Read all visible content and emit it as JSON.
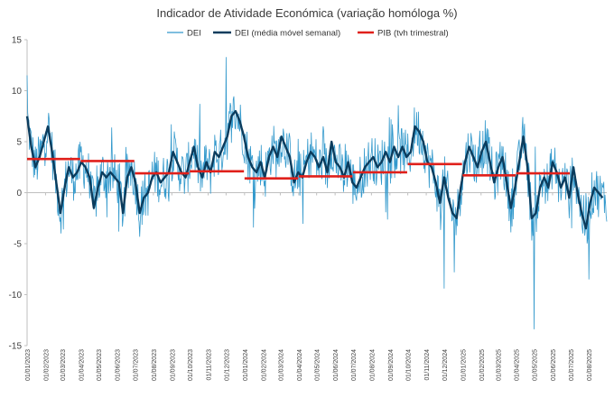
{
  "chart_data": {
    "type": "line",
    "title": "Indicador de Atividade Económica (variação homóloga %)",
    "ylim": [
      -15,
      15
    ],
    "yticks": [
      -15,
      -10,
      -5,
      0,
      5,
      10,
      15
    ],
    "grid": false,
    "legend_position": "top-center",
    "xticks": [
      "01/01/2023",
      "01/02/2023",
      "01/03/2023",
      "01/04/2023",
      "01/05/2023",
      "01/06/2023",
      "01/07/2023",
      "01/08/2023",
      "01/09/2023",
      "01/10/2023",
      "01/11/2023",
      "01/12/2023",
      "01/01/2024",
      "01/02/2024",
      "01/03/2024",
      "01/04/2024",
      "01/05/2024",
      "01/06/2024",
      "01/07/2024",
      "01/08/2024",
      "01/09/2024",
      "01/10/2024",
      "01/11/2024",
      "01/12/2024",
      "01/01/2025",
      "01/02/2025",
      "01/03/2025",
      "01/04/2025",
      "01/05/2025",
      "01/06/2025",
      "01/07/2025",
      "01/08/2025"
    ],
    "series": [
      {
        "name": "DEI",
        "color": "#3399cc",
        "kind": "daily",
        "note_x": "daily series, anchored to the weekly moving average plus day-to-day noise",
        "extremes": [
          {
            "date": "01/05/2025",
            "value": -13.4
          },
          {
            "date": "01/12/2023",
            "value": 13.3
          },
          {
            "date": "01/01/2023",
            "value": 11.5
          },
          {
            "date": "01/12/2024",
            "value": -9.4
          },
          {
            "date": "01/08/2025",
            "value": -8.5
          }
        ]
      },
      {
        "name": "DEI (média móvel semanal)",
        "color": "#0b3c5d",
        "kind": "weekly_ma",
        "points": [
          [
            "01/01/2023",
            7.5
          ],
          [
            "08/01/2023",
            4.5
          ],
          [
            "15/01/2023",
            2.5
          ],
          [
            "22/01/2023",
            3.5
          ],
          [
            "29/01/2023",
            5.0
          ],
          [
            "05/02/2023",
            6.5
          ],
          [
            "12/02/2023",
            4.0
          ],
          [
            "19/02/2023",
            1.0
          ],
          [
            "26/02/2023",
            -2.0
          ],
          [
            "05/03/2023",
            0.5
          ],
          [
            "12/03/2023",
            2.5
          ],
          [
            "19/03/2023",
            1.5
          ],
          [
            "26/03/2023",
            2.0
          ],
          [
            "02/04/2023",
            3.0
          ],
          [
            "09/04/2023",
            2.5
          ],
          [
            "16/04/2023",
            1.5
          ],
          [
            "23/04/2023",
            -1.5
          ],
          [
            "30/04/2023",
            0.5
          ],
          [
            "07/05/2023",
            2.0
          ],
          [
            "14/05/2023",
            1.5
          ],
          [
            "21/05/2023",
            2.0
          ],
          [
            "28/05/2023",
            1.5
          ],
          [
            "04/06/2023",
            1.0
          ],
          [
            "11/06/2023",
            -2.0
          ],
          [
            "18/06/2023",
            1.5
          ],
          [
            "25/06/2023",
            2.5
          ],
          [
            "02/07/2023",
            1.0
          ],
          [
            "09/07/2023",
            -2.0
          ],
          [
            "16/07/2023",
            -0.5
          ],
          [
            "23/07/2023",
            0.0
          ],
          [
            "30/07/2023",
            1.5
          ],
          [
            "06/08/2023",
            2.0
          ],
          [
            "13/08/2023",
            1.0
          ],
          [
            "20/08/2023",
            1.5
          ],
          [
            "27/08/2023",
            2.0
          ],
          [
            "03/09/2023",
            4.0
          ],
          [
            "10/09/2023",
            3.0
          ],
          [
            "17/09/2023",
            2.0
          ],
          [
            "24/09/2023",
            1.5
          ],
          [
            "01/10/2023",
            3.0
          ],
          [
            "08/10/2023",
            4.5
          ],
          [
            "15/10/2023",
            2.5
          ],
          [
            "22/10/2023",
            1.5
          ],
          [
            "29/10/2023",
            3.0
          ],
          [
            "05/11/2023",
            2.0
          ],
          [
            "12/11/2023",
            4.0
          ],
          [
            "19/11/2023",
            3.5
          ],
          [
            "26/11/2023",
            4.5
          ],
          [
            "03/12/2023",
            5.5
          ],
          [
            "10/12/2023",
            7.5
          ],
          [
            "17/12/2023",
            8.0
          ],
          [
            "24/12/2023",
            7.0
          ],
          [
            "31/12/2023",
            5.5
          ],
          [
            "07/01/2024",
            3.5
          ],
          [
            "14/01/2024",
            2.5
          ],
          [
            "21/01/2024",
            2.0
          ],
          [
            "28/01/2024",
            3.0
          ],
          [
            "04/02/2024",
            1.5
          ],
          [
            "11/02/2024",
            3.5
          ],
          [
            "18/02/2024",
            4.5
          ],
          [
            "25/02/2024",
            3.5
          ],
          [
            "03/03/2024",
            5.5
          ],
          [
            "10/03/2024",
            4.5
          ],
          [
            "17/03/2024",
            3.5
          ],
          [
            "24/03/2024",
            1.0
          ],
          [
            "31/03/2024",
            2.0
          ],
          [
            "07/04/2024",
            1.5
          ],
          [
            "14/04/2024",
            3.0
          ],
          [
            "21/04/2024",
            4.0
          ],
          [
            "28/04/2024",
            3.5
          ],
          [
            "05/05/2024",
            2.5
          ],
          [
            "12/05/2024",
            3.5
          ],
          [
            "19/05/2024",
            2.0
          ],
          [
            "26/05/2024",
            5.0
          ],
          [
            "02/06/2024",
            3.0
          ],
          [
            "09/06/2024",
            2.5
          ],
          [
            "16/06/2024",
            1.5
          ],
          [
            "23/06/2024",
            3.0
          ],
          [
            "30/06/2024",
            1.0
          ],
          [
            "07/07/2024",
            0.5
          ],
          [
            "14/07/2024",
            1.5
          ],
          [
            "21/07/2024",
            2.5
          ],
          [
            "28/07/2024",
            3.0
          ],
          [
            "04/08/2024",
            3.5
          ],
          [
            "11/08/2024",
            2.5
          ],
          [
            "18/08/2024",
            3.0
          ],
          [
            "25/08/2024",
            4.0
          ],
          [
            "01/09/2024",
            3.0
          ],
          [
            "08/09/2024",
            4.5
          ],
          [
            "15/09/2024",
            3.5
          ],
          [
            "22/09/2024",
            4.5
          ],
          [
            "29/09/2024",
            3.5
          ],
          [
            "06/10/2024",
            4.0
          ],
          [
            "13/10/2024",
            6.5
          ],
          [
            "20/10/2024",
            6.0
          ],
          [
            "27/10/2024",
            5.0
          ],
          [
            "03/11/2024",
            3.0
          ],
          [
            "10/11/2024",
            2.5
          ],
          [
            "17/11/2024",
            1.0
          ],
          [
            "24/11/2024",
            -1.0
          ],
          [
            "01/12/2024",
            1.5
          ],
          [
            "08/12/2024",
            -0.5
          ],
          [
            "15/12/2024",
            -2.0
          ],
          [
            "22/12/2024",
            -2.5
          ],
          [
            "29/12/2024",
            0.5
          ],
          [
            "05/01/2025",
            3.0
          ],
          [
            "12/01/2025",
            4.5
          ],
          [
            "19/01/2025",
            3.5
          ],
          [
            "26/01/2025",
            2.5
          ],
          [
            "02/02/2025",
            4.0
          ],
          [
            "09/02/2025",
            5.0
          ],
          [
            "16/02/2025",
            3.0
          ],
          [
            "23/02/2025",
            1.0
          ],
          [
            "02/03/2025",
            2.5
          ],
          [
            "09/03/2025",
            3.5
          ],
          [
            "16/03/2025",
            1.0
          ],
          [
            "23/03/2025",
            -1.5
          ],
          [
            "30/03/2025",
            0.5
          ],
          [
            "06/04/2025",
            3.0
          ],
          [
            "13/04/2025",
            5.5
          ],
          [
            "20/04/2025",
            2.5
          ],
          [
            "27/04/2025",
            -2.5
          ],
          [
            "04/05/2025",
            -2.0
          ],
          [
            "11/05/2025",
            0.5
          ],
          [
            "18/05/2025",
            1.5
          ],
          [
            "25/05/2025",
            0.5
          ],
          [
            "01/06/2025",
            3.0
          ],
          [
            "08/06/2025",
            2.0
          ],
          [
            "15/06/2025",
            0.5
          ],
          [
            "22/06/2025",
            1.5
          ],
          [
            "29/06/2025",
            -0.5
          ],
          [
            "06/07/2025",
            2.5
          ],
          [
            "13/07/2025",
            0.0
          ],
          [
            "20/07/2025",
            -2.0
          ],
          [
            "27/07/2025",
            -3.5
          ],
          [
            "03/08/2025",
            -1.0
          ],
          [
            "10/08/2025",
            0.5
          ],
          [
            "17/08/2025",
            0.0
          ],
          [
            "24/08/2025",
            -0.5
          ]
        ]
      },
      {
        "name": "PIB (tvh trimestral)",
        "color": "#e0201b",
        "kind": "quarterly_steps",
        "steps": [
          {
            "start": "01/01/2023",
            "end": "31/03/2023",
            "value": 3.3
          },
          {
            "start": "01/04/2023",
            "end": "30/06/2023",
            "value": 3.1
          },
          {
            "start": "01/07/2023",
            "end": "30/09/2023",
            "value": 1.9
          },
          {
            "start": "01/10/2023",
            "end": "31/12/2023",
            "value": 2.1
          },
          {
            "start": "01/01/2024",
            "end": "31/03/2024",
            "value": 1.4
          },
          {
            "start": "01/04/2024",
            "end": "30/06/2024",
            "value": 1.6
          },
          {
            "start": "01/07/2024",
            "end": "30/09/2024",
            "value": 2.0
          },
          {
            "start": "01/10/2024",
            "end": "31/12/2024",
            "value": 2.8
          },
          {
            "start": "01/01/2025",
            "end": "31/03/2025",
            "value": 1.7
          },
          {
            "start": "01/04/2025",
            "end": "30/06/2025",
            "value": 1.9
          }
        ]
      }
    ]
  }
}
